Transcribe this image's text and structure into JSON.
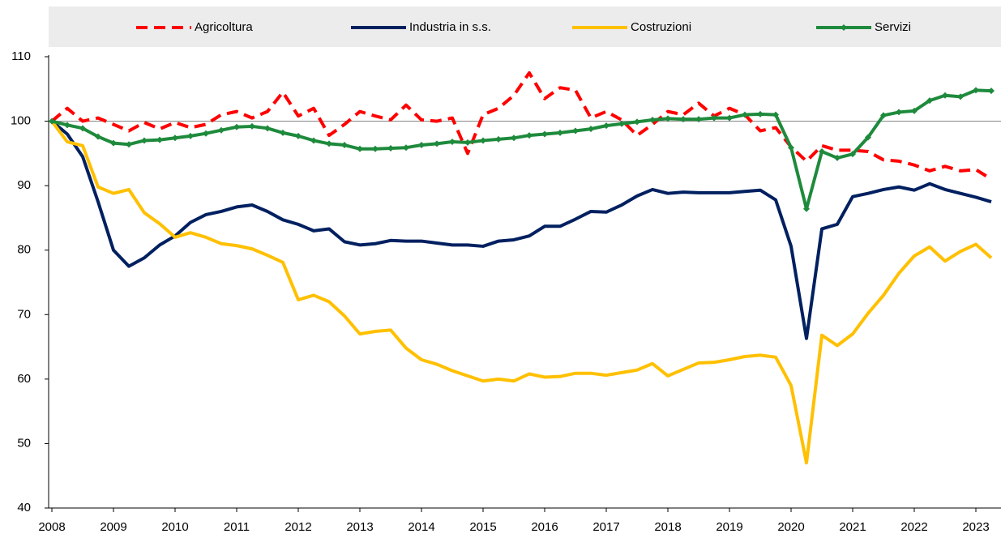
{
  "chart_data": {
    "type": "line",
    "categories": [
      "2008",
      null,
      null,
      null,
      "2009",
      null,
      null,
      null,
      "2010",
      null,
      null,
      null,
      "2011",
      null,
      null,
      null,
      "2012",
      null,
      null,
      null,
      "2013",
      null,
      null,
      null,
      "2014",
      null,
      null,
      null,
      "2015",
      null,
      null,
      null,
      "2016",
      null,
      null,
      null,
      "2017",
      null,
      null,
      null,
      "2018",
      null,
      null,
      null,
      "2019",
      null,
      null,
      null,
      "2020",
      null,
      null,
      null,
      "2021",
      null,
      null,
      null,
      "2022",
      null,
      null,
      null,
      "2023",
      null
    ],
    "series": [
      {
        "name": "Agricoltura",
        "color": "#ff0000",
        "dash": true,
        "values": [
          100,
          102,
          100,
          100.5,
          99.5,
          98.5,
          99.8,
          98.8,
          99.8,
          99,
          99.5,
          101,
          101.5,
          100.5,
          101.5,
          104.5,
          100.8,
          102,
          97.8,
          99.5,
          101.5,
          100.8,
          100.2,
          102.5,
          100.2,
          100,
          100.5,
          95,
          101,
          102,
          104,
          107.5,
          103.5,
          105.2,
          104.8,
          100.5,
          101.5,
          100.2,
          97.8,
          99.5,
          101.5,
          101,
          102.8,
          100.8,
          102,
          101,
          98.5,
          99,
          96,
          93.8,
          96.2,
          95.5,
          95.5,
          95.3,
          94,
          93.8,
          93.2,
          92.3,
          93,
          92.3,
          92.5,
          91
        ]
      },
      {
        "name": "Industria in s.s.",
        "color": "#002060",
        "values": [
          100,
          98,
          94.5,
          87.5,
          80,
          77.5,
          78.8,
          80.8,
          82.2,
          84.3,
          85.5,
          86,
          86.7,
          87,
          86,
          84.7,
          84,
          83,
          83.3,
          81.3,
          80.8,
          81,
          81.5,
          81.4,
          81.4,
          81.1,
          80.8,
          80.8,
          80.6,
          81.4,
          81.6,
          82.2,
          83.7,
          83.7,
          84.8,
          86,
          85.9,
          87,
          88.4,
          89.4,
          88.8,
          89,
          88.9,
          88.9,
          88.9,
          89.1,
          89.3,
          87.8,
          80.6,
          66.3,
          83.3,
          84,
          88.3,
          88.8,
          89.4,
          89.8,
          89.3,
          90.3,
          89.4,
          88.8,
          88.2,
          87.5
        ]
      },
      {
        "name": "Costruzioni",
        "color": "#ffc000",
        "values": [
          100,
          96.8,
          96.2,
          89.8,
          88.8,
          89.4,
          85.8,
          84.1,
          82,
          82.7,
          82,
          81,
          80.7,
          80.2,
          79.2,
          78.1,
          72.3,
          73,
          72,
          69.8,
          67,
          67.4,
          67.6,
          64.8,
          63,
          62.3,
          61.3,
          60.5,
          59.7,
          60,
          59.7,
          60.8,
          60.3,
          60.4,
          60.9,
          60.9,
          60.6,
          61,
          61.4,
          62.4,
          60.5,
          61.5,
          62.5,
          62.6,
          63,
          63.5,
          63.7,
          63.4,
          59,
          47,
          66.8,
          65.2,
          67,
          70.2,
          73,
          76.4,
          79.1,
          80.5,
          78.3,
          79.8,
          80.9,
          78.8
        ]
      },
      {
        "name": "Servizi",
        "color": "#1e8a3c",
        "markers": true,
        "values": [
          100,
          99.4,
          98.9,
          97.6,
          96.6,
          96.4,
          97,
          97.1,
          97.4,
          97.7,
          98.1,
          98.6,
          99.1,
          99.2,
          98.9,
          98.2,
          97.7,
          97,
          96.5,
          96.3,
          95.7,
          95.7,
          95.8,
          95.9,
          96.3,
          96.5,
          96.8,
          96.7,
          97,
          97.2,
          97.4,
          97.8,
          98,
          98.2,
          98.5,
          98.8,
          99.3,
          99.6,
          99.9,
          100.2,
          100.4,
          100.3,
          100.3,
          100.5,
          100.5,
          101,
          101.1,
          101,
          95.9,
          86.4,
          95.3,
          94.3,
          94.9,
          97.5,
          100.9,
          101.4,
          101.6,
          103.2,
          104,
          103.8,
          104.8,
          104.7
        ]
      }
    ],
    "ylim": [
      40,
      110
    ],
    "yticks": [
      40,
      50,
      60,
      70,
      80,
      90,
      100,
      110
    ],
    "reference_line": 100,
    "legend": "top"
  }
}
